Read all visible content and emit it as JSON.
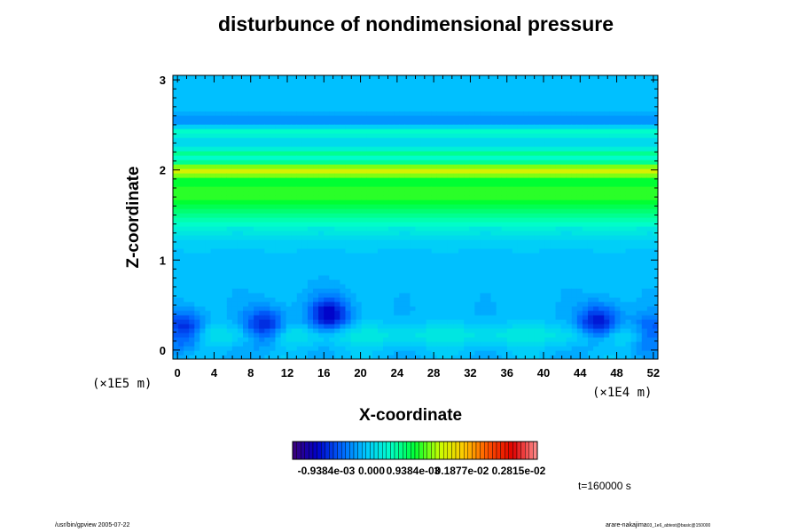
{
  "chart_data": {
    "type": "heatmap",
    "title": "disturbunce of nondimensional pressure",
    "xlabel": "X-coordinate",
    "ylabel": "Z-coordinate",
    "x_unit": "(×1E4 m)",
    "z_unit": "(×1E5 m)",
    "x_ticks": [
      "0",
      "4",
      "8",
      "12",
      "16",
      "20",
      "24",
      "28",
      "32",
      "36",
      "40",
      "44",
      "48",
      "52"
    ],
    "y_ticks": [
      "0",
      "1",
      "2",
      "3"
    ],
    "x_range": [
      -0.5,
      52.5
    ],
    "z_range": [
      -0.1,
      3.05
    ],
    "colorscale": [
      "#3c0078",
      "#0000c8",
      "#0064ff",
      "#00c8ff",
      "#00ffc8",
      "#00ff32",
      "#c8ff00",
      "#ffc800",
      "#ff5000",
      "#e00000",
      "#ff9090"
    ],
    "colorbar_labels": [
      "-0.9384e-03",
      "0.000",
      "0.9384e-03",
      "0.1877e-02",
      "0.2815e-02"
    ],
    "background_level": 0.0,
    "bands": [
      {
        "z": 0.17,
        "width": 0.12,
        "amplitude": 0.0003
      },
      {
        "z": 1.75,
        "width": 0.38,
        "amplitude": 0.0011
      },
      {
        "z": 2.0,
        "width": 0.07,
        "amplitude": 0.0009
      },
      {
        "z": 2.2,
        "width": 0.05,
        "amplitude": 0.0004
      },
      {
        "z": 2.42,
        "width": 0.06,
        "amplitude": 0.0005
      },
      {
        "z": 2.55,
        "width": 0.08,
        "amplitude": -0.0002
      }
    ],
    "lows": [
      {
        "x": 0.7,
        "z": 0.22,
        "amplitude": -0.0009
      },
      {
        "x": 9.5,
        "z": 0.26,
        "amplitude": -0.00085
      },
      {
        "x": 16.6,
        "z": 0.4,
        "amplitude": -0.0009
      },
      {
        "x": 46.0,
        "z": 0.3,
        "amplitude": -0.0009
      },
      {
        "x": 52.0,
        "z": 0.2,
        "amplitude": -0.0006
      }
    ],
    "time_label": "t=160000 s"
  },
  "footer": {
    "left": "/usr/bin/gpview 2005-07-22",
    "right_main": "arare-nakajima",
    "right_sub": "03_1e6_abtest@basic@150000"
  }
}
